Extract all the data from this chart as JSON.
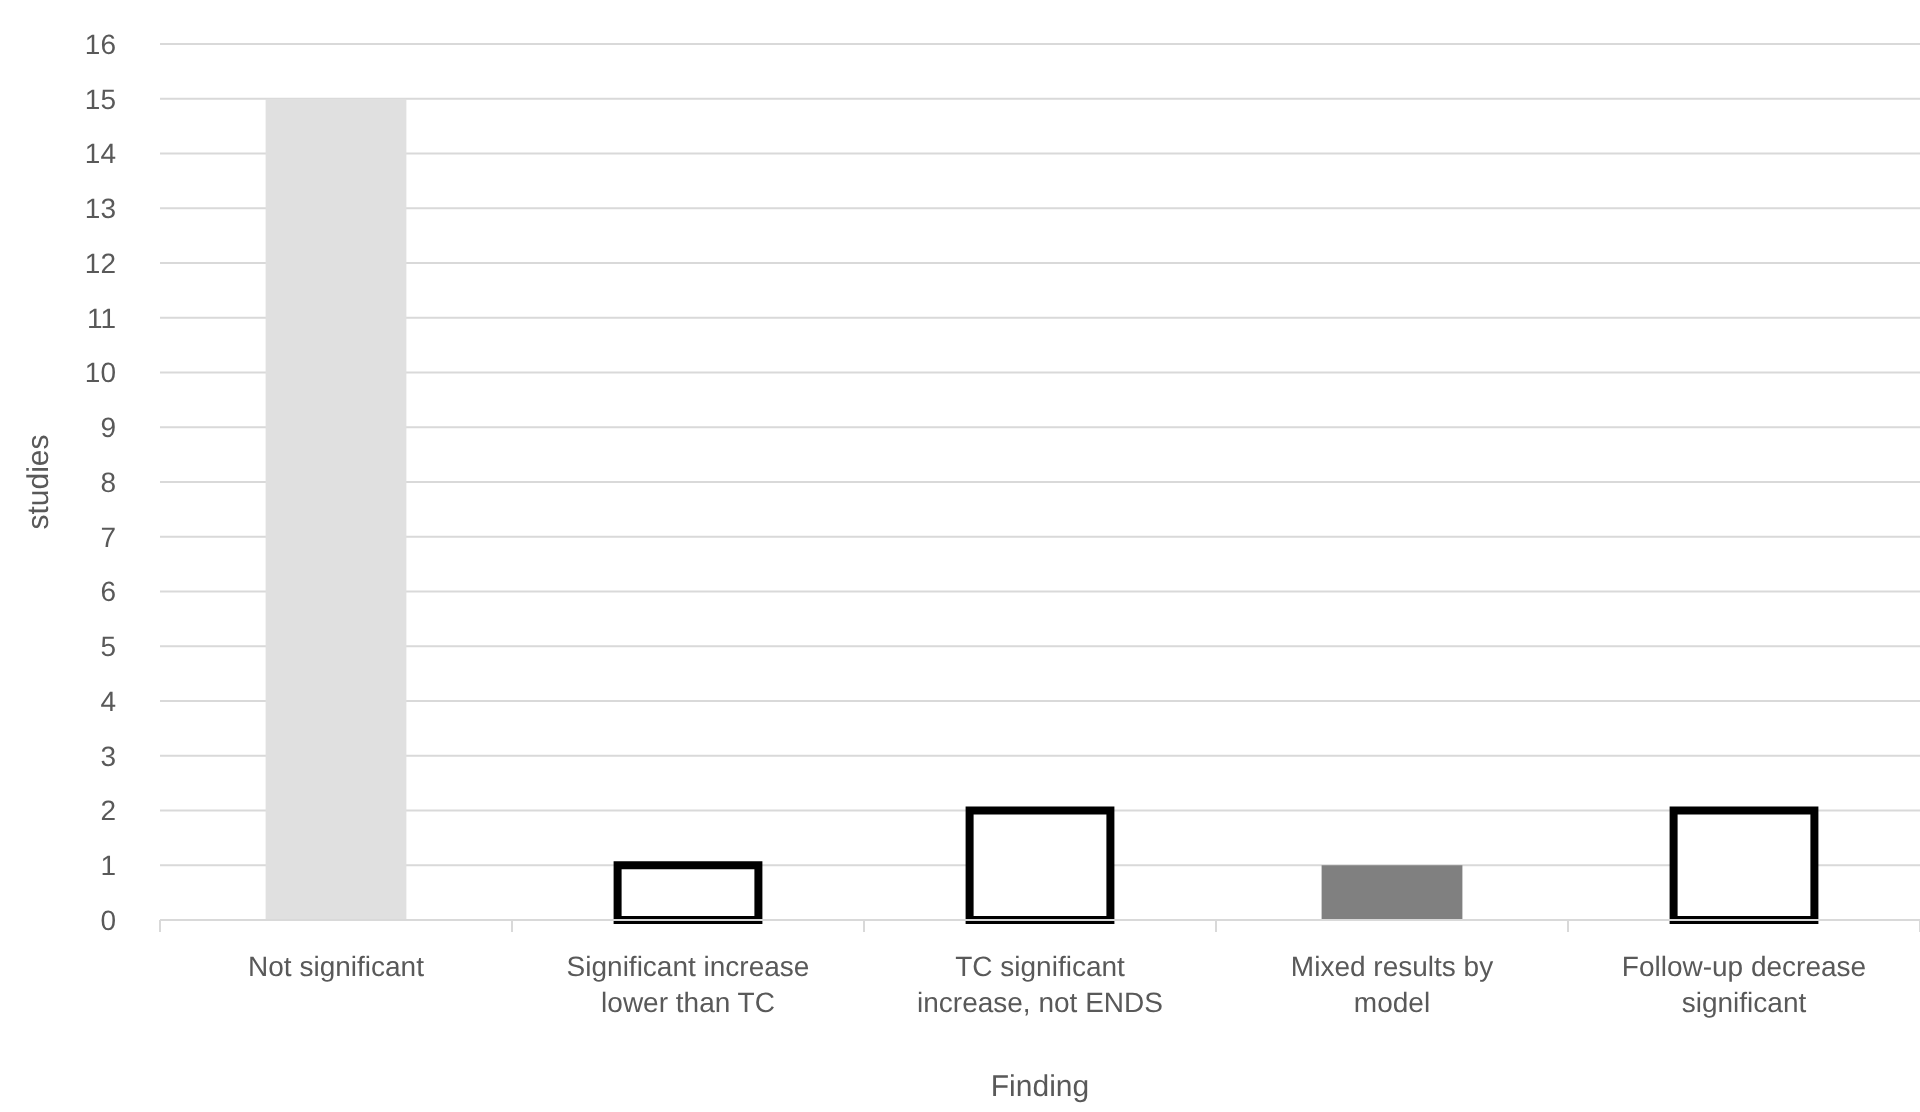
{
  "chart_data": {
    "type": "bar",
    "xlabel": "Finding",
    "ylabel": "studies",
    "categories": [
      "Not significant",
      "Significant increase lower than TC",
      "TC significant increase, not ENDS",
      "Mixed results by model",
      "Follow-up decrease significant"
    ],
    "values": [
      15,
      1,
      2,
      1,
      2
    ],
    "colors": [
      "#e0e0e0",
      "#ffffff",
      "#ffffff",
      "#808080",
      "#ffffff"
    ],
    "ylim": [
      0,
      16
    ],
    "yticks": [
      0,
      1,
      2,
      3,
      4,
      5,
      6,
      7,
      8,
      9,
      10,
      11,
      12,
      13,
      14,
      15,
      16
    ],
    "grid": "y"
  }
}
